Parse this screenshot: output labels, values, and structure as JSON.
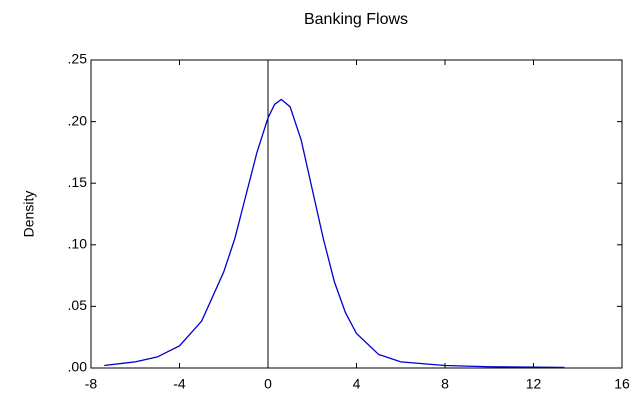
{
  "chart_data": {
    "type": "line",
    "title": "Banking Flows",
    "y_label": "Density",
    "series": [
      {
        "name": null,
        "color": "#0000cc",
        "x": [
          -7.4,
          -6,
          -5,
          -4,
          -3,
          -2,
          -1.5,
          -1,
          -0.5,
          0,
          0.3,
          0.6,
          1,
          1.5,
          2,
          2.5,
          3,
          3.5,
          4,
          5,
          6,
          8,
          10,
          13.4
        ],
        "values": [
          0.002,
          0.005,
          0.009,
          0.018,
          0.038,
          0.078,
          0.105,
          0.14,
          0.175,
          0.203,
          0.214,
          0.218,
          0.212,
          0.185,
          0.145,
          0.105,
          0.07,
          0.045,
          0.028,
          0.011,
          0.005,
          0.002,
          0.001,
          0.0005
        ]
      }
    ],
    "xlim": [
      -8,
      16
    ],
    "xticks": [
      -8,
      -4,
      0,
      4,
      8,
      12,
      16
    ],
    "ylim": [
      0,
      0.25
    ],
    "yticks": [
      {
        "value": 0,
        "label": ".00"
      },
      {
        "value": 0.05,
        "label": ".05"
      },
      {
        "value": 0.1,
        "label": ".10"
      },
      {
        "value": 0.15,
        "label": ".15"
      },
      {
        "value": 0.2,
        "label": ".20"
      },
      {
        "value": 0.25,
        "label": ".25"
      }
    ],
    "zero_line": true
  }
}
